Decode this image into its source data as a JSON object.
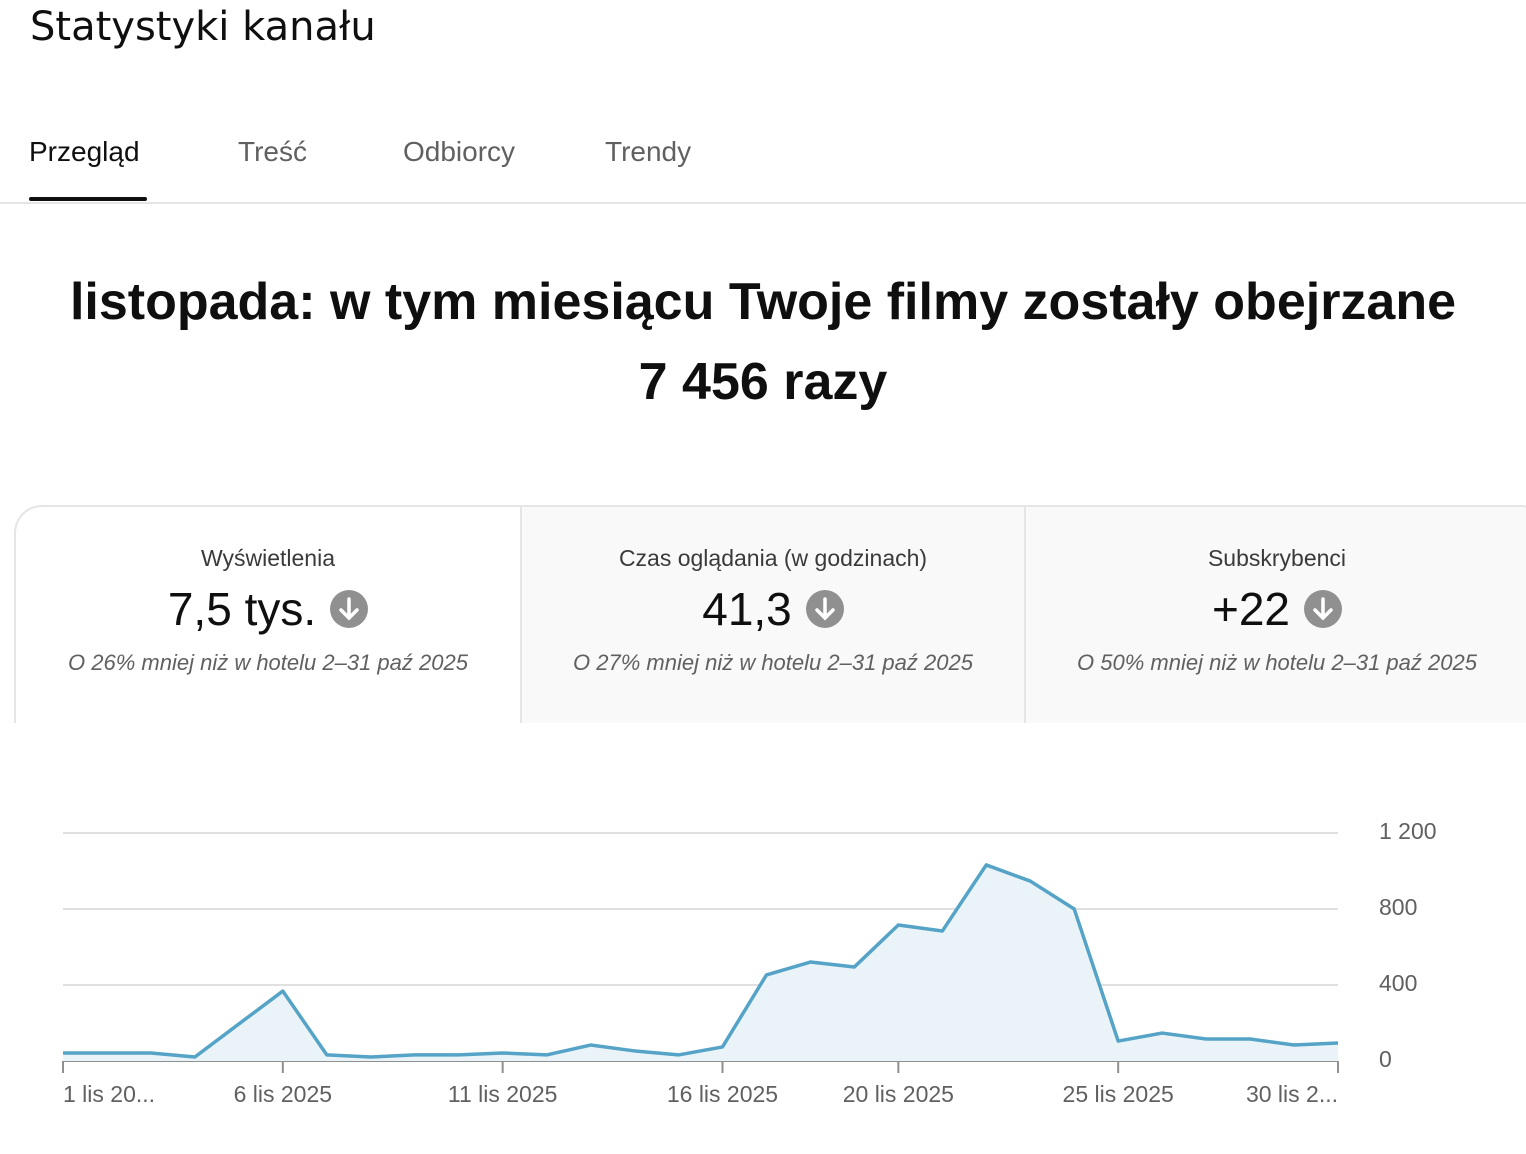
{
  "header": {
    "title": "Statystyki kanału"
  },
  "tabs": [
    "Przegląd",
    "Treść",
    "Odbiorcy",
    "Trendy"
  ],
  "headline": {
    "line1": "listopada: w tym miesiącu Twoje filmy zostały obejrzane",
    "line2": "7 456 razy"
  },
  "metrics": [
    {
      "label": "Wyświetlenia",
      "value": "7,5 tys.",
      "comparison": "O 26% mniej niż w hotelu 2–31 paź 2025"
    },
    {
      "label": "Czas oglądania (w godzinach)",
      "value": "41,3",
      "comparison": "O 27% mniej niż w hotelu 2–31 paź 2025"
    },
    {
      "label": "Subskrybenci",
      "value": "+22",
      "comparison": "O 50% mniej niż w hotelu 2–31 paź 2025"
    }
  ],
  "chart_data": {
    "type": "area",
    "categories": [
      "1 lis 20...",
      null,
      null,
      null,
      null,
      "6 lis 2025",
      null,
      null,
      null,
      null,
      "11 lis 2025",
      null,
      null,
      null,
      null,
      "16 lis 2025",
      null,
      null,
      null,
      "20 lis 2025",
      null,
      null,
      null,
      null,
      "25 lis 2025",
      null,
      null,
      null,
      null,
      "30 lis 2..."
    ],
    "values": [
      42,
      42,
      42,
      21,
      195,
      368,
      32,
      21,
      32,
      32,
      42,
      32,
      84,
      53,
      32,
      74,
      453,
      521,
      495,
      716,
      684,
      1032,
      947,
      800,
      105,
      147,
      116,
      116,
      84,
      95
    ],
    "color": "#55a3c6",
    "fill": "#eaf4f8",
    "ylim": [
      0,
      1200
    ],
    "yticks": [
      0,
      400,
      800,
      {
        "value": 1200,
        "label": "1 200"
      }
    ],
    "grid": true
  }
}
